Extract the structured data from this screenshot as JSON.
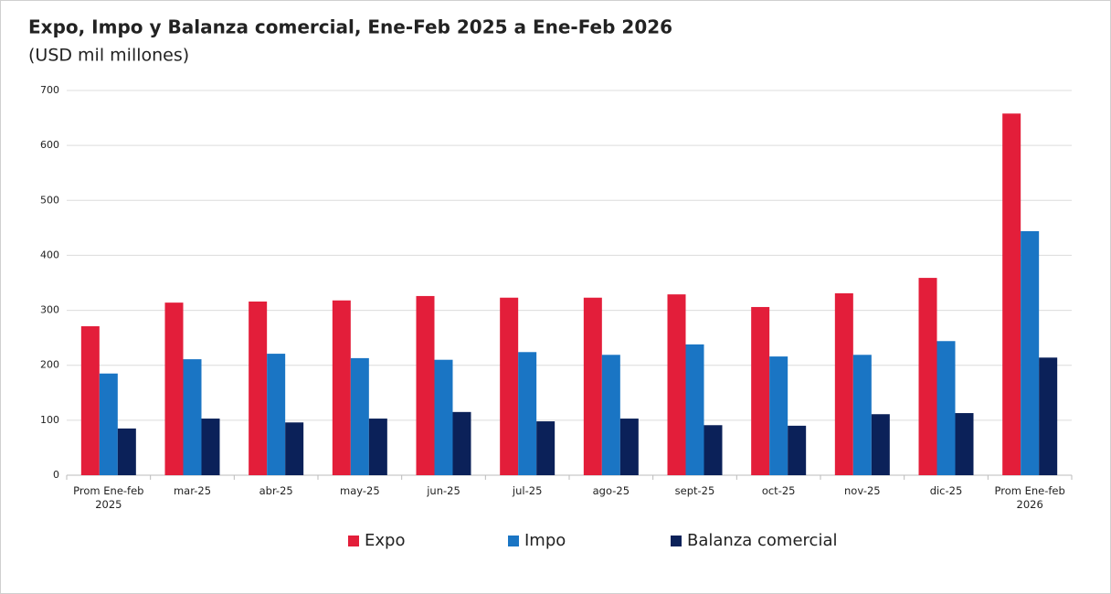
{
  "chart_data": {
    "type": "bar",
    "title": "Expo, Impo y Balanza comercial, Ene-Feb 2025 a Ene-Feb 2026",
    "subtitle": "(USD mil millones)",
    "categories": [
      "Prom Ene-feb 2025",
      "mar-25",
      "abr-25",
      "may-25",
      "jun-25",
      "jul-25",
      "ago-25",
      "sept-25",
      "oct-25",
      "nov-25",
      "dic-25",
      "Prom Ene-feb 2026"
    ],
    "series": [
      {
        "name": "Expo",
        "color": "#e31e3a",
        "values": [
          271,
          314,
          316,
          318,
          326,
          323,
          323,
          329,
          306,
          331,
          359,
          658
        ]
      },
      {
        "name": "Impo",
        "color": "#1a75c4",
        "values": [
          185,
          211,
          221,
          213,
          210,
          224,
          219,
          238,
          216,
          219,
          244,
          444
        ]
      },
      {
        "name": "Balanza comercial",
        "color": "#0b2159",
        "values": [
          85,
          103,
          96,
          103,
          115,
          98,
          103,
          91,
          90,
          111,
          113,
          214
        ]
      }
    ],
    "ylim": [
      0,
      700
    ],
    "yticks": [
      0,
      100,
      200,
      300,
      400,
      500,
      600,
      700
    ],
    "grid": true,
    "legend": "bottom"
  }
}
